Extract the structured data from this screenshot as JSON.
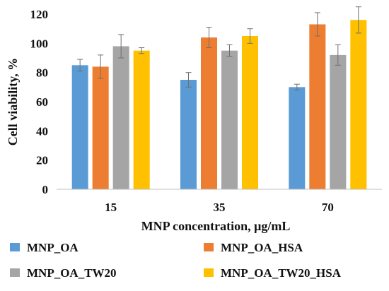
{
  "chart_data": {
    "type": "bar",
    "title": "",
    "xlabel": "MNP concentration, μg/mL",
    "ylabel": "Cell viability, %",
    "categories": [
      "15",
      "35",
      "70"
    ],
    "ylim": [
      0,
      120
    ],
    "yticks": [
      0,
      20,
      40,
      60,
      80,
      100,
      120
    ],
    "grid": false,
    "legend_position": "bottom",
    "series": [
      {
        "name": "MNP_OA",
        "color": "#5B9BD5",
        "values": [
          85,
          75,
          70
        ],
        "errors": [
          4,
          5,
          2
        ]
      },
      {
        "name": "MNP_OA_HSA",
        "color": "#ED7D31",
        "values": [
          84,
          104,
          113
        ],
        "errors": [
          8,
          7,
          8
        ]
      },
      {
        "name": "MNP_OA_TW20",
        "color": "#A5A5A5",
        "values": [
          98,
          95,
          92
        ],
        "errors": [
          8,
          4,
          7
        ]
      },
      {
        "name": "MNP_OA_TW20_HSA",
        "color": "#FFC000",
        "values": [
          95,
          105,
          116
        ],
        "errors": [
          2,
          5,
          9
        ]
      }
    ]
  }
}
